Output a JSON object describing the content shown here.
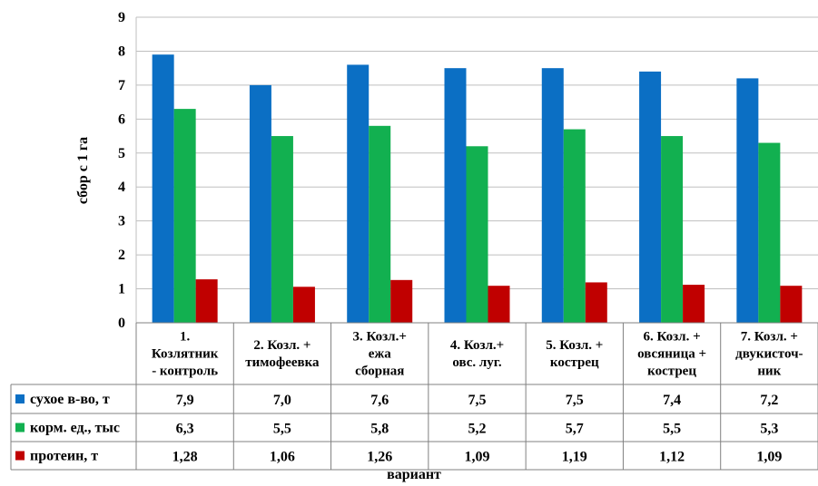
{
  "chart_data": {
    "type": "bar",
    "ylabel": "сбор с 1 га",
    "xlabel": "вариант",
    "ylim": [
      0,
      9
    ],
    "yticks": [
      0,
      1,
      2,
      3,
      4,
      5,
      6,
      7,
      8,
      9
    ],
    "grid": true,
    "legend": "data-table",
    "categories": [
      [
        "1.",
        "Козлятник",
        "- контроль"
      ],
      [
        "2. Козл. +",
        "тимофеевка"
      ],
      [
        "3. Козл.+",
        "ежа",
        "сборная"
      ],
      [
        "4. Козл.+",
        "овс. луг."
      ],
      [
        "5. Козл. +",
        "кострец"
      ],
      [
        "6. Козл. +",
        "овсяница +",
        "кострец"
      ],
      [
        "7. Козл. +",
        "двукисточ-",
        "ник"
      ]
    ],
    "series": [
      {
        "name": "сухое в-во, т",
        "color": "#0b6fc4",
        "values": [
          7.9,
          7.0,
          7.6,
          7.5,
          7.5,
          7.4,
          7.2
        ],
        "labels": [
          "7,9",
          "7,0",
          "7,6",
          "7,5",
          "7,5",
          "7,4",
          "7,2"
        ]
      },
      {
        "name": "корм. ед., тыс",
        "color": "#12b050",
        "values": [
          6.3,
          5.5,
          5.8,
          5.2,
          5.7,
          5.5,
          5.3
        ],
        "labels": [
          "6,3",
          "5,5",
          "5,8",
          "5,2",
          "5,7",
          "5,5",
          "5,3"
        ]
      },
      {
        "name": "протеин, т",
        "color": "#c00000",
        "values": [
          1.28,
          1.06,
          1.26,
          1.09,
          1.19,
          1.12,
          1.09
        ],
        "labels": [
          "1,28",
          "1,06",
          "1,26",
          "1,09",
          "1,19",
          "1,12",
          "1,09"
        ]
      }
    ]
  }
}
